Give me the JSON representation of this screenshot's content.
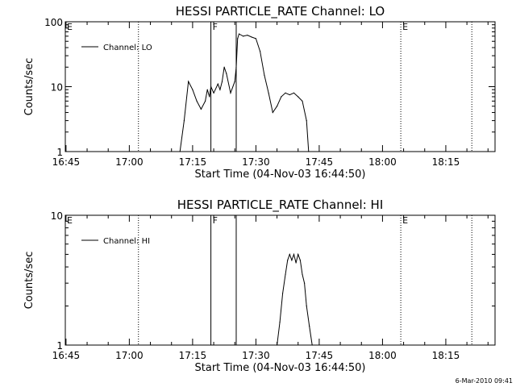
{
  "chart_data": [
    {
      "type": "line",
      "title": "HESSI PARTICLE_RATE Channel: LO",
      "xlabel": "Start Time (04-Nov-03 16:44:50)",
      "ylabel": "Counts/sec",
      "yscale": "log",
      "ylim": [
        1,
        100
      ],
      "xlim": [
        "16:44:50",
        "18:26:40"
      ],
      "x_ticks": [
        "16:45",
        "17:00",
        "17:15",
        "17:30",
        "17:45",
        "18:00",
        "18:15"
      ],
      "y_ticks": [
        "1",
        "10",
        "100"
      ],
      "legend": {
        "label": "Channel: LO",
        "position": "top-left"
      },
      "markers": [
        {
          "time": "16:44:50",
          "label": "E",
          "style": "dotted"
        },
        {
          "time": "17:02:10",
          "label": "",
          "style": "dotted"
        },
        {
          "time": "17:19:20",
          "label": "F",
          "style": "solid"
        },
        {
          "time": "17:25:20",
          "label": "",
          "style": "solid"
        },
        {
          "time": "18:04:20",
          "label": "E",
          "style": "dotted"
        },
        {
          "time": "18:21:10",
          "label": "",
          "style": "dotted"
        }
      ],
      "series": [
        {
          "x": [
            "17:12:00",
            "17:13:00",
            "17:14:00",
            "17:15:00",
            "17:16:00",
            "17:17:00",
            "17:18:00",
            "17:18:30",
            "17:19:00",
            "17:19:20",
            "17:20:00",
            "17:21:00",
            "17:21:30",
            "17:22:00",
            "17:22:30",
            "17:23:00",
            "17:24:00",
            "17:25:00",
            "17:25:20",
            "17:25:40",
            "17:26:00",
            "17:27:00",
            "17:28:00",
            "17:29:00",
            "17:30:00",
            "17:31:00",
            "17:32:00",
            "17:33:00",
            "17:34:00",
            "17:35:00",
            "17:36:00",
            "17:37:00",
            "17:38:00",
            "17:39:00",
            "17:40:00",
            "17:41:00",
            "17:42:00",
            "17:42:30"
          ],
          "y": [
            1,
            3,
            12,
            9,
            6,
            4.5,
            6,
            9,
            7,
            10,
            8,
            11,
            9,
            12,
            20,
            16,
            8,
            12,
            20,
            55,
            65,
            60,
            62,
            58,
            55,
            35,
            15,
            8,
            4,
            5,
            7,
            8,
            7.5,
            8,
            7,
            6,
            3,
            1
          ]
        }
      ]
    },
    {
      "type": "line",
      "title": "HESSI PARTICLE_RATE Channel: HI",
      "xlabel": "Start Time (04-Nov-03 16:44:50)",
      "ylabel": "Counts/sec",
      "yscale": "log",
      "ylim": [
        1,
        10
      ],
      "xlim": [
        "16:44:50",
        "18:26:40"
      ],
      "x_ticks": [
        "16:45",
        "17:00",
        "17:15",
        "17:30",
        "17:45",
        "18:00",
        "18:15"
      ],
      "y_ticks": [
        "1",
        "10"
      ],
      "legend": {
        "label": "Channel: HI",
        "position": "top-left"
      },
      "markers": [
        {
          "time": "16:44:50",
          "label": "E",
          "style": "dotted"
        },
        {
          "time": "17:02:10",
          "label": "",
          "style": "dotted"
        },
        {
          "time": "17:19:20",
          "label": "F",
          "style": "solid"
        },
        {
          "time": "17:25:20",
          "label": "",
          "style": "solid"
        },
        {
          "time": "18:04:20",
          "label": "E",
          "style": "dotted"
        },
        {
          "time": "18:21:10",
          "label": "",
          "style": "dotted"
        }
      ],
      "series": [
        {
          "x": [
            "17:35:00",
            "17:35:40",
            "17:36:20",
            "17:37:00",
            "17:37:30",
            "17:38:00",
            "17:38:30",
            "17:39:00",
            "17:39:30",
            "17:40:00",
            "17:40:30",
            "17:41:00",
            "17:41:30",
            "17:42:00",
            "17:42:40",
            "17:43:20"
          ],
          "y": [
            1,
            1.5,
            2.5,
            3.5,
            4.5,
            5,
            4.5,
            5,
            4.3,
            5,
            4.5,
            3.5,
            3,
            2,
            1.4,
            1
          ]
        }
      ]
    }
  ],
  "footer": {
    "stamp": "6-Mar-2010 09:41"
  }
}
